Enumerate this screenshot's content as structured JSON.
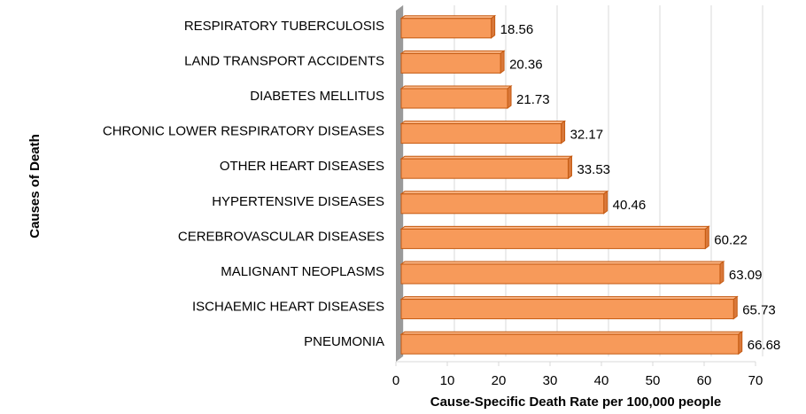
{
  "chart_data": {
    "type": "bar",
    "orientation": "horizontal",
    "categories": [
      "RESPIRATORY TUBERCULOSIS",
      "LAND TRANSPORT ACCIDENTS",
      "DIABETES MELLITUS",
      "CHRONIC LOWER RESPIRATORY DISEASES",
      "OTHER HEART DISEASES",
      "HYPERTENSIVE DISEASES",
      "CEREBROVASCULAR DISEASES",
      "MALIGNANT NEOPLASMS",
      "ISCHAEMIC HEART DISEASES",
      "PNEUMONIA"
    ],
    "values": [
      18.56,
      20.36,
      21.73,
      32.17,
      33.53,
      40.46,
      60.22,
      63.09,
      65.73,
      66.68
    ],
    "color": "#f79a5a",
    "xlabel": "Cause-Specific Death Rate per 100,000 people",
    "ylabel": "Causes of Death",
    "xlim": [
      0,
      70
    ],
    "xticks": [
      0,
      10,
      20,
      30,
      40,
      50,
      60,
      70
    ],
    "grid": true
  }
}
